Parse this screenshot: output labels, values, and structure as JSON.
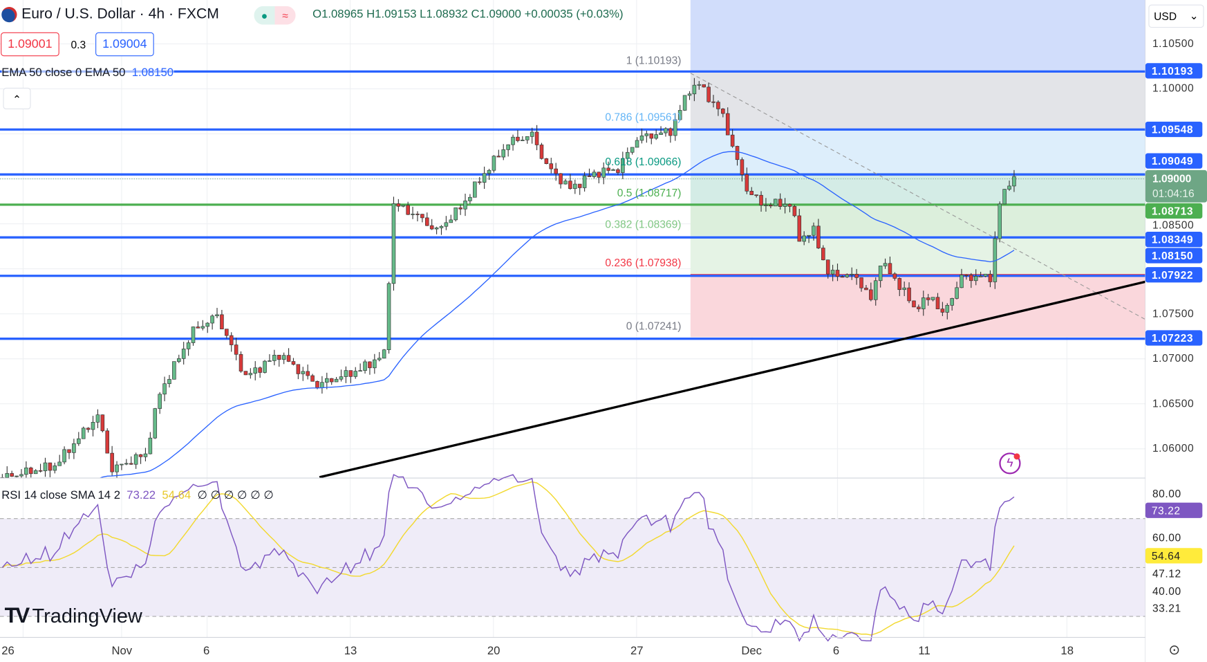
{
  "header": {
    "symbol": "Euro / U.S. Dollar · 4h · FXCM",
    "ohlc": "O1.08965 H1.09153 L1.08932 C1.09000 +0.00035 (+0.03%)",
    "sell": "1.09001",
    "spread": "0.3",
    "buy": "1.09004",
    "status_symbol": "≈"
  },
  "ema_legend": {
    "label": "EMA 50 close 0 EMA 50",
    "value": "1.08150"
  },
  "rsi_legend": {
    "label": "RSI 14 close SMA 14 2",
    "rsi": "73.22",
    "sma": "54.64",
    "extras": "∅ ∅ ∅ ∅ ∅ ∅"
  },
  "currency": "USD",
  "price_ticks": [
    "1.10500",
    "1.10000",
    "1.08500",
    "1.07500",
    "1.07000",
    "1.06500",
    "1.06000"
  ],
  "price_tags": [
    {
      "v": "1.10193",
      "c": "#2962ff"
    },
    {
      "v": "1.09548",
      "c": "#2962ff"
    },
    {
      "v": "1.09049",
      "c": "#2962ff"
    },
    {
      "v": "1.08713",
      "c": "#4caf50"
    },
    {
      "v": "1.08349",
      "c": "#2962ff"
    },
    {
      "v": "1.08150",
      "c": "#2962ff"
    },
    {
      "v": "1.07922",
      "c": "#2962ff"
    },
    {
      "v": "1.07223",
      "c": "#2962ff"
    }
  ],
  "last_price": {
    "v": "1.09000",
    "countdown": "01:04:16"
  },
  "fib_levels": [
    {
      "label": "1 (1.10193)",
      "color": "#787b86"
    },
    {
      "label": "0.786 (1.09561)",
      "color": "#64b5f6"
    },
    {
      "label": "0.618 (1.09066)",
      "color": "#089981"
    },
    {
      "label": "0.5 (1.08717)",
      "color": "#4caf50"
    },
    {
      "label": "0.382 (1.08369)",
      "color": "#81c784"
    },
    {
      "label": "0.236 (1.07938)",
      "color": "#f23645"
    },
    {
      "label": "0 (1.07241)",
      "color": "#787b86"
    }
  ],
  "rsi_ticks": [
    "80.00",
    "60.00",
    "47.12",
    "40.00",
    "33.21"
  ],
  "rsi_tags": {
    "rsi": "73.22",
    "sma": "54.64"
  },
  "x_labels": [
    "26",
    "Nov",
    "6",
    "13",
    "20",
    "27",
    "Dec",
    "6",
    "11",
    "18"
  ],
  "logo": "TradingView",
  "chart_data": {
    "type": "candlestick",
    "title": "Euro / U.S. Dollar · 4h · FXCM",
    "ylim": [
      1.0568,
      1.1098
    ],
    "candles": 213,
    "anchors": [
      [
        0,
        1.0568
      ],
      [
        11,
        1.0581
      ],
      [
        20,
        1.0637
      ],
      [
        23,
        1.0577
      ],
      [
        30,
        1.0594
      ],
      [
        33,
        1.0662
      ],
      [
        40,
        1.0731
      ],
      [
        45,
        1.0748
      ],
      [
        51,
        1.068
      ],
      [
        58,
        1.0705
      ],
      [
        66,
        1.0671
      ],
      [
        75,
        1.0688
      ],
      [
        80,
        1.0705
      ],
      [
        82,
        1.0872
      ],
      [
        87,
        1.0859
      ],
      [
        91,
        1.0842
      ],
      [
        96,
        1.0868
      ],
      [
        101,
        1.0906
      ],
      [
        106,
        1.094
      ],
      [
        111,
        1.0949
      ],
      [
        114,
        1.0915
      ],
      [
        119,
        1.0889
      ],
      [
        124,
        1.0906
      ],
      [
        129,
        1.0911
      ],
      [
        133,
        1.0945
      ],
      [
        140,
        1.0953
      ],
      [
        144,
        1.1
      ],
      [
        146,
        1.1005
      ],
      [
        151,
        1.097
      ],
      [
        154,
        1.0919
      ],
      [
        156,
        1.0889
      ],
      [
        159,
        1.0872
      ],
      [
        165,
        1.0872
      ],
      [
        167,
        1.0834
      ],
      [
        170,
        1.0842
      ],
      [
        173,
        1.0795
      ],
      [
        179,
        1.0791
      ],
      [
        182,
        1.0765
      ],
      [
        184,
        1.0808
      ],
      [
        188,
        1.0782
      ],
      [
        191,
        1.0757
      ],
      [
        195,
        1.0769
      ],
      [
        197,
        1.0748
      ],
      [
        201,
        1.0791
      ],
      [
        207,
        1.0791
      ],
      [
        209,
        1.0872
      ],
      [
        211,
        1.0898
      ],
      [
        212,
        1.09
      ]
    ]
  }
}
